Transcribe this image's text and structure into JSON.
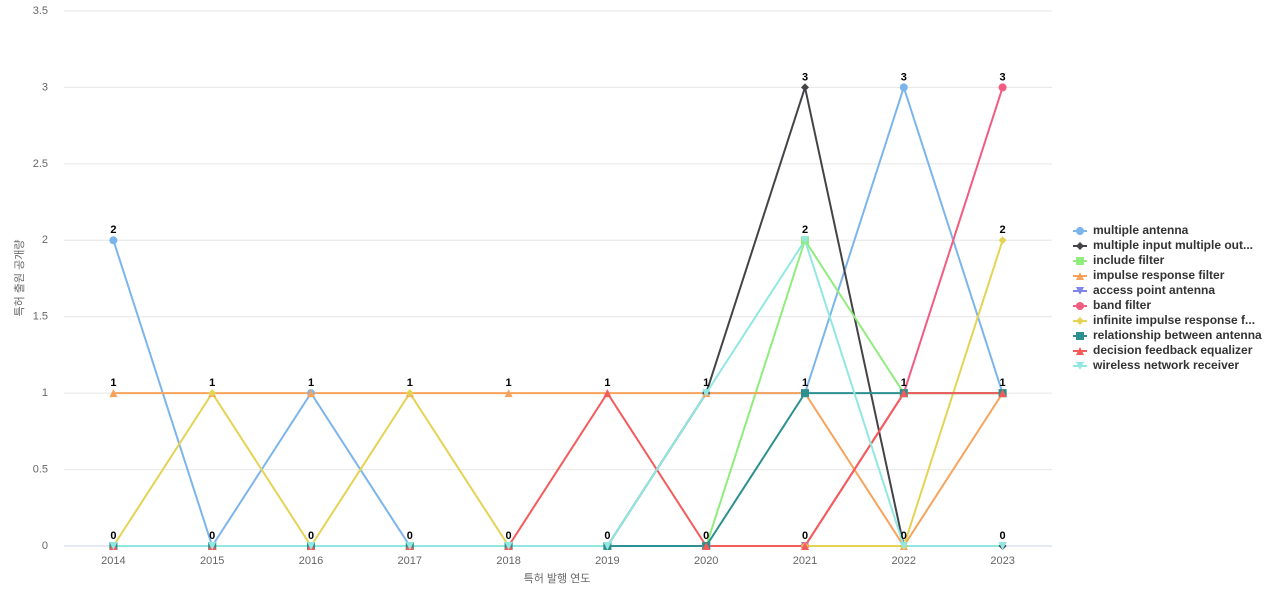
{
  "chart_data": {
    "type": "line",
    "x_label": "특허 발행 연도",
    "y_label": "특허 출원 공개량",
    "categories": [
      "2014",
      "2015",
      "2016",
      "2017",
      "2018",
      "2019",
      "2020",
      "2021",
      "2022",
      "2023"
    ],
    "ylim": [
      0,
      3.5
    ],
    "yticks": [
      0,
      0.5,
      1,
      1.5,
      2,
      2.5,
      3,
      3.5
    ],
    "grid": true,
    "legend": "right",
    "series": [
      {
        "name": "multiple antenna",
        "color": "#7cb5ec",
        "marker": "circle",
        "values": [
          2,
          0,
          1,
          0,
          0,
          0,
          1,
          1,
          3,
          1
        ]
      },
      {
        "name": "multiple input multiple out...",
        "color": "#434348",
        "marker": "diamond",
        "values": [
          0,
          0,
          0,
          0,
          0,
          0,
          1,
          3,
          0,
          0
        ]
      },
      {
        "name": "include filter",
        "color": "#90ed7d",
        "marker": "square",
        "values": [
          0,
          0,
          0,
          0,
          0,
          0,
          0,
          2,
          1,
          1
        ]
      },
      {
        "name": "impulse response filter",
        "color": "#f7a35c",
        "marker": "triangle",
        "values": [
          1,
          1,
          1,
          1,
          1,
          1,
          1,
          1,
          0,
          1
        ]
      },
      {
        "name": "access point antenna",
        "color": "#8085e9",
        "marker": "triangle-down",
        "values": [
          0,
          0,
          0,
          0,
          0,
          0,
          0,
          0,
          0,
          0
        ]
      },
      {
        "name": "band filter",
        "color": "#f15c80",
        "marker": "circle",
        "values": [
          0,
          0,
          0,
          0,
          0,
          0,
          0,
          0,
          1,
          3
        ]
      },
      {
        "name": "infinite impulse response f...",
        "color": "#e4d354",
        "marker": "diamond",
        "values": [
          0,
          1,
          0,
          1,
          0,
          0,
          0,
          0,
          0,
          2
        ]
      },
      {
        "name": "relationship between antenna",
        "color": "#2b908f",
        "marker": "square",
        "values": [
          0,
          0,
          0,
          0,
          0,
          0,
          0,
          1,
          1,
          1
        ]
      },
      {
        "name": "decision feedback equalizer",
        "color": "#f45b5b",
        "marker": "triangle",
        "values": [
          0,
          0,
          0,
          0,
          0,
          1,
          0,
          0,
          1,
          1
        ]
      },
      {
        "name": "wireless network receiver",
        "color": "#91e8e1",
        "marker": "triangle-down",
        "values": [
          0,
          0,
          0,
          0,
          0,
          0,
          1,
          2,
          0,
          0
        ]
      }
    ]
  }
}
